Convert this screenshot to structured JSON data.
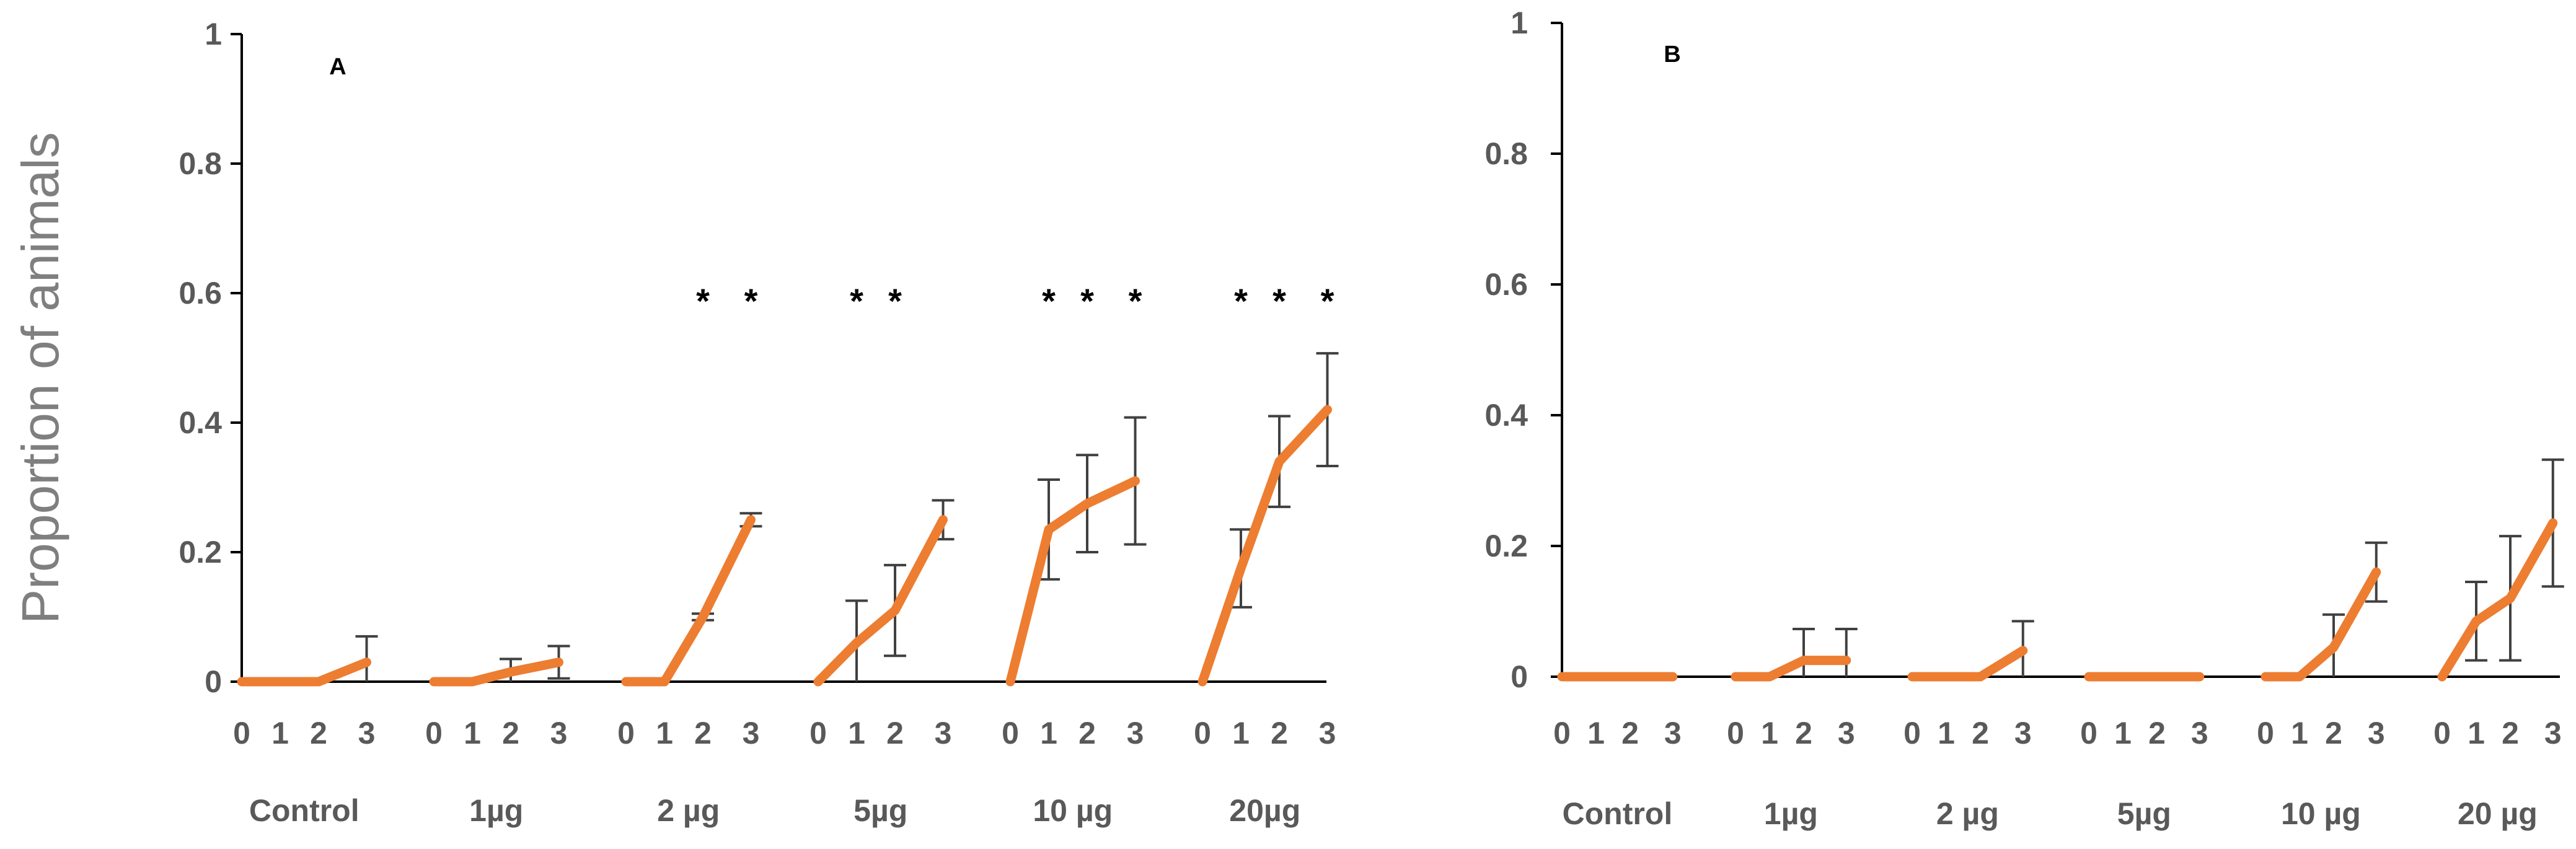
{
  "figure": {
    "ylabel": "Proportion of animals",
    "series_color": "#ED7D31",
    "axis_color": "#000000",
    "errorbar_color": "#404040",
    "tick_label_color": "#595959"
  },
  "chart_data": [
    {
      "type": "line",
      "panel_label": "A",
      "ylim": [
        0,
        1
      ],
      "yticks": [
        "0",
        "0.2",
        "0.4",
        "0.6",
        "0.8",
        "1"
      ],
      "grid": false,
      "groups": [
        {
          "label": "Control",
          "x": [
            "0",
            "1",
            "2",
            "3"
          ],
          "values": [
            0,
            0,
            0,
            0.03
          ],
          "errors": [
            0,
            0,
            0,
            0.04
          ],
          "stars": [
            "",
            "",
            "",
            ""
          ]
        },
        {
          "label": "1µg",
          "x": [
            "0",
            "1",
            "2",
            "3"
          ],
          "values": [
            0,
            0,
            0.015,
            0.03
          ],
          "errors": [
            0,
            0,
            0.02,
            0.025
          ],
          "stars": [
            "",
            "",
            "",
            ""
          ]
        },
        {
          "label": "2 µg",
          "x": [
            "0",
            "1",
            "2",
            "3"
          ],
          "values": [
            0,
            0,
            0.1,
            0.25
          ],
          "errors": [
            0,
            0,
            0.005,
            0.01
          ],
          "stars": [
            "",
            "",
            "*",
            "*"
          ]
        },
        {
          "label": "5µg",
          "x": [
            "0",
            "1",
            "2",
            "3"
          ],
          "values": [
            0,
            0.06,
            0.11,
            0.25
          ],
          "errors": [
            0,
            0.065,
            0.07,
            0.03
          ],
          "stars": [
            "",
            "*",
            "*",
            ""
          ]
        },
        {
          "label": "10 µg",
          "x": [
            "0",
            "1",
            "2",
            "3"
          ],
          "values": [
            0,
            0.235,
            0.275,
            0.31
          ],
          "errors": [
            0,
            0.077,
            0.075,
            0.098
          ],
          "stars": [
            "",
            "*",
            "*",
            "*"
          ]
        },
        {
          "label": "20µg",
          "x": [
            "0",
            "1",
            "2",
            "3"
          ],
          "values": [
            0,
            0.175,
            0.34,
            0.42
          ],
          "errors": [
            0,
            0.06,
            0.07,
            0.087
          ],
          "stars": [
            "",
            "*",
            "*",
            "*"
          ]
        }
      ]
    },
    {
      "type": "line",
      "panel_label": "B",
      "ylim": [
        0,
        1
      ],
      "yticks": [
        "0",
        "0.2",
        "0.4",
        "0.6",
        "0.8",
        "1"
      ],
      "grid": false,
      "groups": [
        {
          "label": "Control",
          "x": [
            "0",
            "1",
            "2",
            "3"
          ],
          "values": [
            0,
            0,
            0,
            0
          ],
          "errors": [
            0,
            0,
            0,
            0
          ],
          "stars": [
            "",
            "",
            "",
            ""
          ]
        },
        {
          "label": "1µg",
          "x": [
            "0",
            "1",
            "2",
            "3"
          ],
          "values": [
            0,
            0,
            0.025,
            0.025
          ],
          "errors": [
            0,
            0,
            0.048,
            0.048
          ],
          "stars": [
            "",
            "",
            "",
            ""
          ]
        },
        {
          "label": "2 µg",
          "x": [
            "0",
            "1",
            "2",
            "3"
          ],
          "values": [
            0,
            0,
            0,
            0.04
          ],
          "errors": [
            0,
            0,
            0,
            0.045
          ],
          "stars": [
            "",
            "",
            "",
            ""
          ]
        },
        {
          "label": "5µg",
          "x": [
            "0",
            "1",
            "2",
            "3"
          ],
          "values": [
            0,
            0,
            0,
            0
          ],
          "errors": [
            0,
            0,
            0,
            0
          ],
          "stars": [
            "",
            "",
            "",
            ""
          ]
        },
        {
          "label": "10 µg",
          "x": [
            "0",
            "1",
            "2",
            "3"
          ],
          "values": [
            0,
            0,
            0.045,
            0.16
          ],
          "errors": [
            0,
            0,
            0.05,
            0.045
          ],
          "stars": [
            "",
            "",
            "",
            ""
          ]
        },
        {
          "label": "20 µg",
          "x": [
            "0",
            "1",
            "2",
            "3"
          ],
          "values": [
            0,
            0.085,
            0.12,
            0.235
          ],
          "errors": [
            0,
            0.06,
            0.095,
            0.097
          ],
          "stars": [
            "",
            "",
            "",
            ""
          ]
        }
      ]
    }
  ]
}
